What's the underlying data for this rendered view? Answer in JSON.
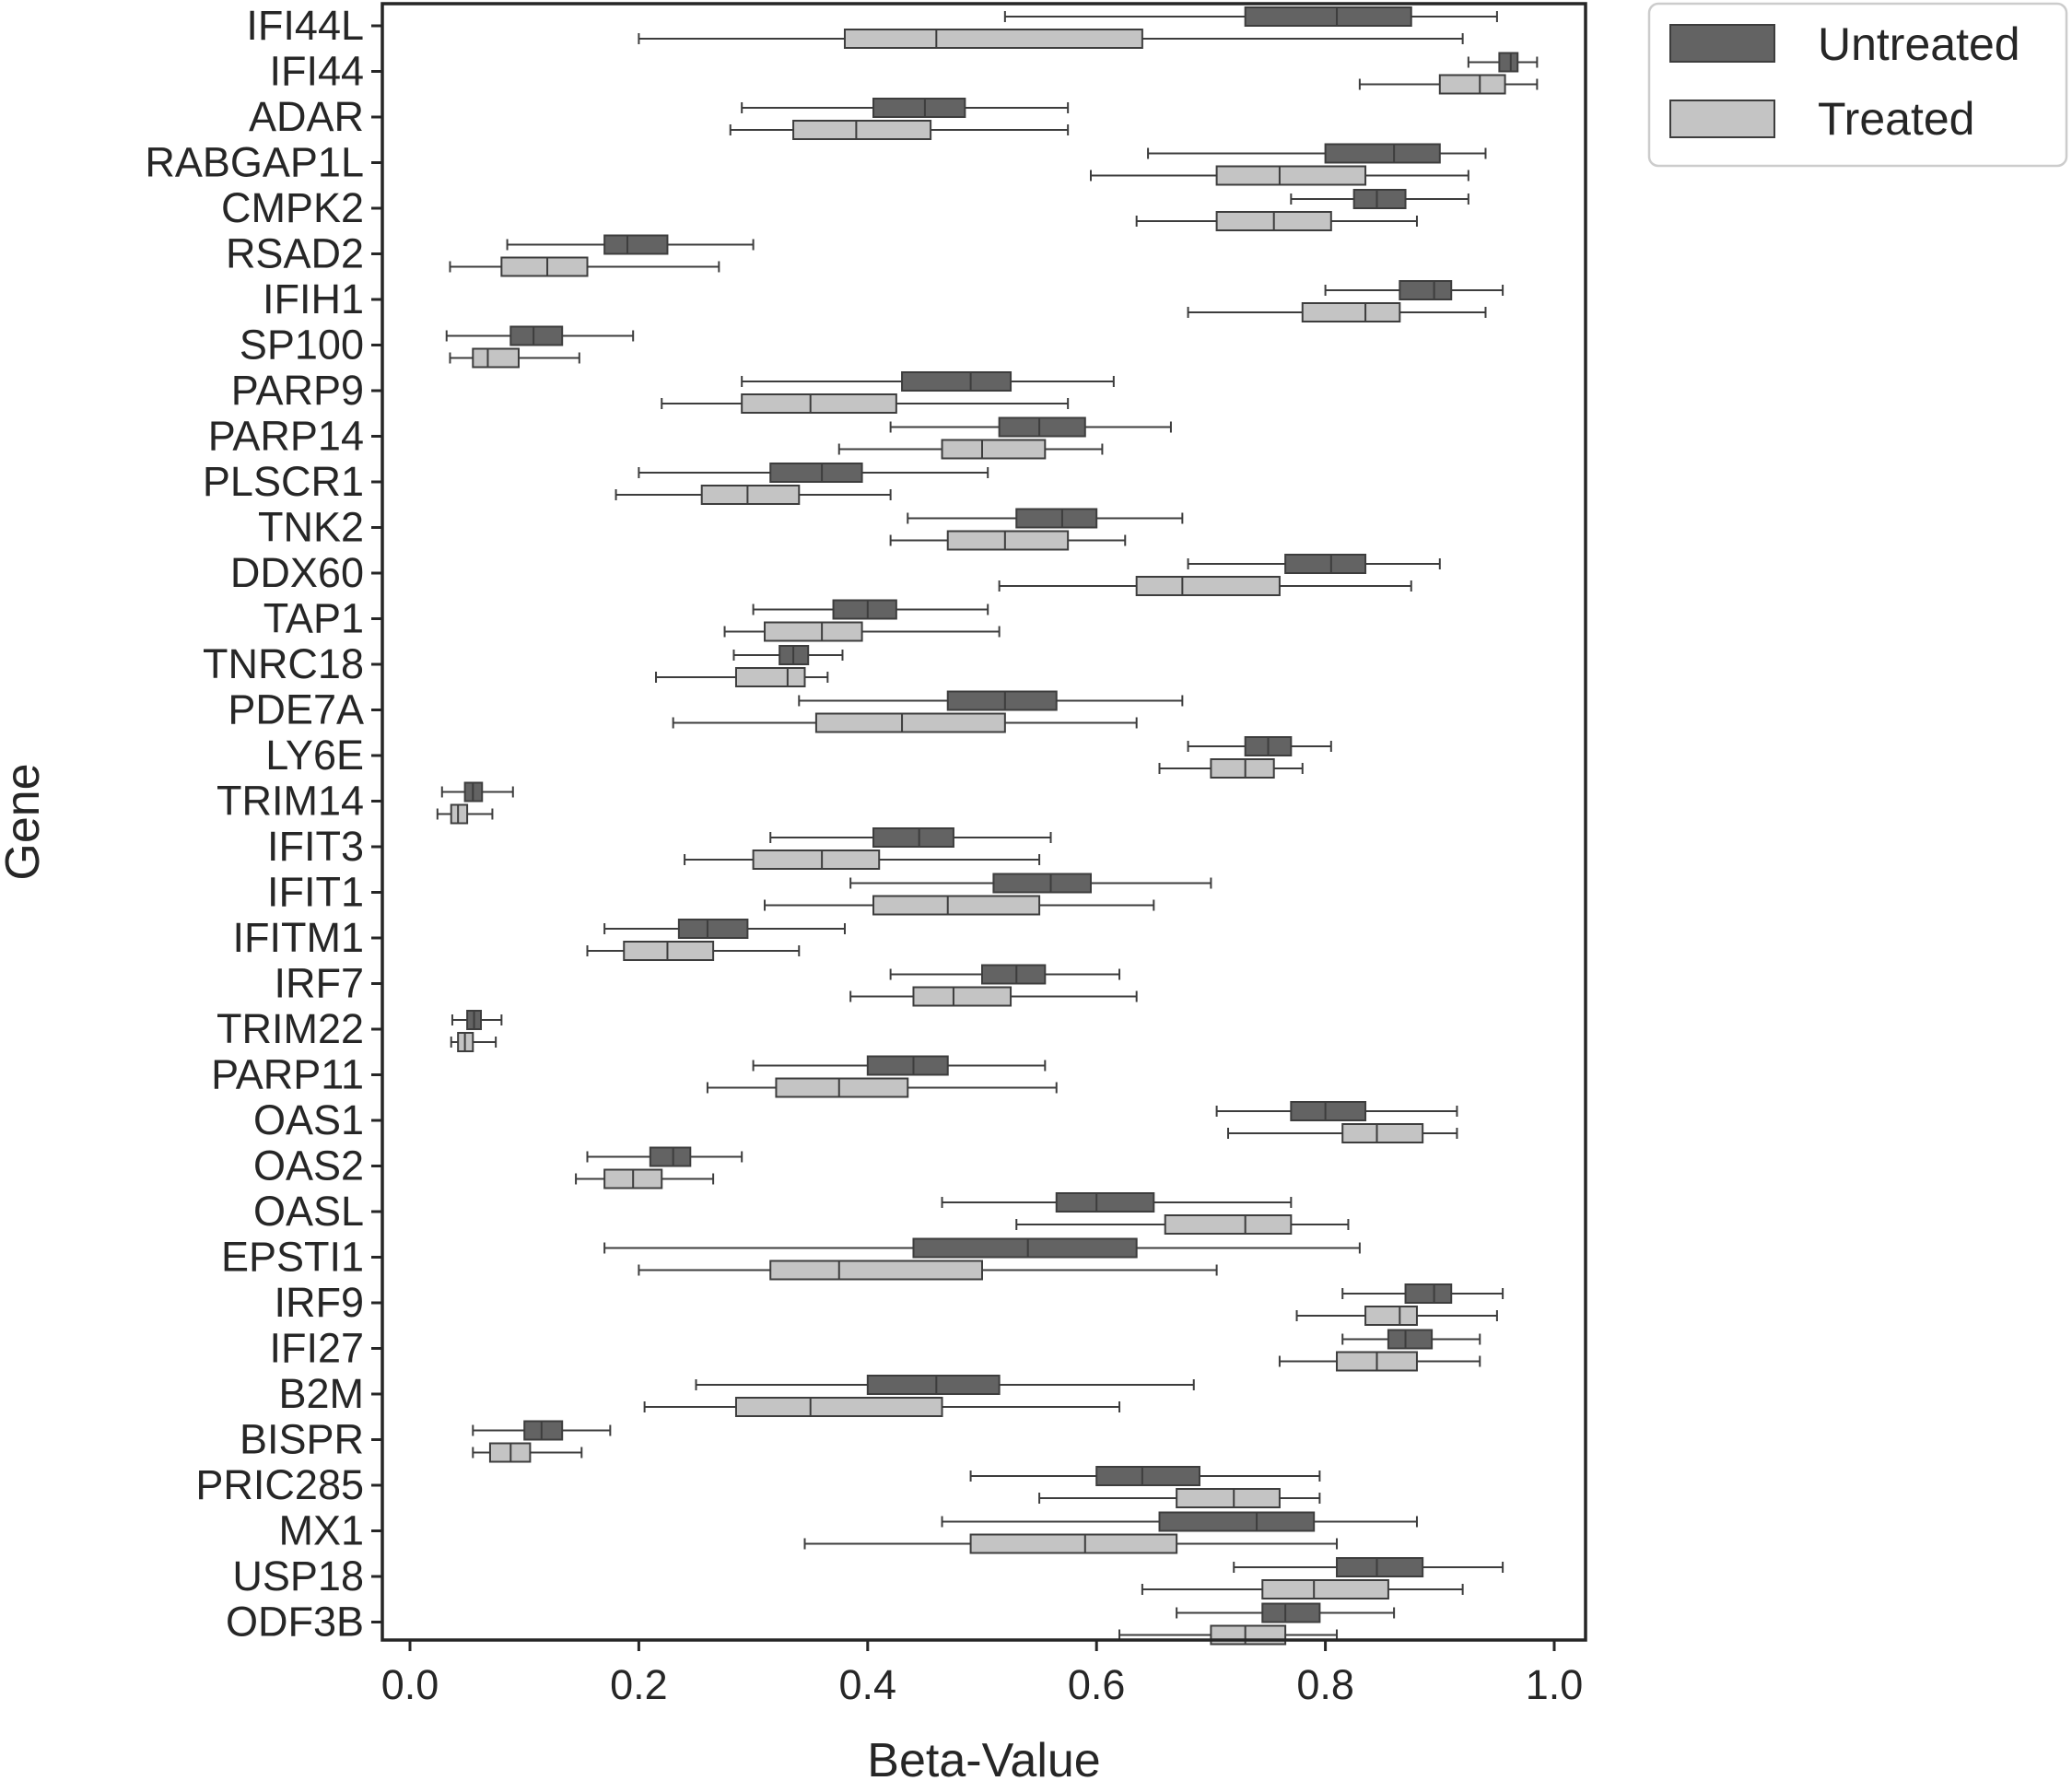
{
  "chart_data": {
    "type": "boxplot",
    "orientation": "horizontal",
    "xlabel": "Beta-Value",
    "ylabel": "Gene",
    "xlim": [
      -0.025,
      1.035
    ],
    "xticks": [
      0.0,
      0.2,
      0.4,
      0.6,
      0.8,
      1.0
    ],
    "xtick_labels": [
      "0.0",
      "0.2",
      "0.4",
      "0.6",
      "0.8",
      "1.0"
    ],
    "grid": false,
    "legend_position": "outside-top-right",
    "colors": {
      "Untreated": "#636363",
      "Treated": "#c4c4c4",
      "edge": "#3d3d3d"
    },
    "series": [
      {
        "name": "Untreated",
        "color": "#636363"
      },
      {
        "name": "Treated",
        "color": "#c4c4c4"
      }
    ],
    "categories": [
      "IFI44L",
      "IFI44",
      "ADAR",
      "RABGAP1L",
      "CMPK2",
      "RSAD2",
      "IFIH1",
      "SP100",
      "PARP9",
      "PARP14",
      "PLSCR1",
      "TNK2",
      "DDX60",
      "TAP1",
      "TNRC18",
      "PDE7A",
      "LY6E",
      "TRIM14",
      "IFIT3",
      "IFIT1",
      "IFITM1",
      "IRF7",
      "TRIM22",
      "PARP11",
      "OAS1",
      "OAS2",
      "OASL",
      "EPSTI1",
      "IRF9",
      "IFI27",
      "B2M",
      "BISPR",
      "PRIC285",
      "MX1",
      "USP18",
      "ODF3B"
    ],
    "boxes": [
      {
        "gene": "IFI44L",
        "untreated": [
          0.52,
          0.73,
          0.81,
          0.875,
          0.95
        ],
        "treated": [
          0.2,
          0.38,
          0.46,
          0.64,
          0.92
        ]
      },
      {
        "gene": "IFI44",
        "untreated": [
          0.925,
          0.952,
          0.962,
          0.968,
          0.985
        ],
        "treated": [
          0.83,
          0.9,
          0.935,
          0.957,
          0.985
        ]
      },
      {
        "gene": "ADAR",
        "untreated": [
          0.29,
          0.405,
          0.45,
          0.485,
          0.575
        ],
        "treated": [
          0.28,
          0.335,
          0.39,
          0.455,
          0.575
        ]
      },
      {
        "gene": "RABGAP1L",
        "untreated": [
          0.645,
          0.8,
          0.86,
          0.9,
          0.94
        ],
        "treated": [
          0.595,
          0.705,
          0.76,
          0.835,
          0.925
        ]
      },
      {
        "gene": "CMPK2",
        "untreated": [
          0.77,
          0.825,
          0.845,
          0.87,
          0.925
        ],
        "treated": [
          0.635,
          0.705,
          0.755,
          0.805,
          0.88
        ]
      },
      {
        "gene": "RSAD2",
        "untreated": [
          0.085,
          0.17,
          0.19,
          0.225,
          0.3
        ],
        "treated": [
          0.035,
          0.08,
          0.12,
          0.155,
          0.27
        ]
      },
      {
        "gene": "IFIH1",
        "untreated": [
          0.8,
          0.865,
          0.895,
          0.91,
          0.955
        ],
        "treated": [
          0.68,
          0.78,
          0.835,
          0.865,
          0.94
        ]
      },
      {
        "gene": "SP100",
        "untreated": [
          0.032,
          0.088,
          0.108,
          0.133,
          0.195
        ],
        "treated": [
          0.035,
          0.055,
          0.068,
          0.095,
          0.148
        ]
      },
      {
        "gene": "PARP9",
        "untreated": [
          0.29,
          0.43,
          0.49,
          0.525,
          0.615
        ],
        "treated": [
          0.22,
          0.29,
          0.35,
          0.425,
          0.575
        ]
      },
      {
        "gene": "PARP14",
        "untreated": [
          0.42,
          0.515,
          0.55,
          0.59,
          0.665
        ],
        "treated": [
          0.375,
          0.465,
          0.5,
          0.555,
          0.605
        ]
      },
      {
        "gene": "PLSCR1",
        "untreated": [
          0.2,
          0.315,
          0.36,
          0.395,
          0.505
        ],
        "treated": [
          0.18,
          0.255,
          0.295,
          0.34,
          0.42
        ]
      },
      {
        "gene": "TNK2",
        "untreated": [
          0.435,
          0.53,
          0.57,
          0.6,
          0.675
        ],
        "treated": [
          0.42,
          0.47,
          0.52,
          0.575,
          0.625
        ]
      },
      {
        "gene": "DDX60",
        "untreated": [
          0.68,
          0.765,
          0.805,
          0.835,
          0.9
        ],
        "treated": [
          0.515,
          0.635,
          0.675,
          0.76,
          0.875
        ]
      },
      {
        "gene": "TAP1",
        "untreated": [
          0.3,
          0.37,
          0.4,
          0.425,
          0.505
        ],
        "treated": [
          0.275,
          0.31,
          0.36,
          0.395,
          0.515
        ]
      },
      {
        "gene": "TNRC18",
        "untreated": [
          0.283,
          0.323,
          0.335,
          0.348,
          0.378
        ],
        "treated": [
          0.215,
          0.285,
          0.33,
          0.345,
          0.365
        ]
      },
      {
        "gene": "PDE7A",
        "untreated": [
          0.34,
          0.47,
          0.52,
          0.565,
          0.675
        ],
        "treated": [
          0.23,
          0.355,
          0.43,
          0.52,
          0.635
        ]
      },
      {
        "gene": "LY6E",
        "untreated": [
          0.68,
          0.73,
          0.75,
          0.77,
          0.805
        ],
        "treated": [
          0.655,
          0.7,
          0.73,
          0.755,
          0.78
        ]
      },
      {
        "gene": "TRIM14",
        "untreated": [
          0.028,
          0.048,
          0.055,
          0.063,
          0.09
        ],
        "treated": [
          0.024,
          0.036,
          0.042,
          0.05,
          0.072
        ]
      },
      {
        "gene": "IFIT3",
        "untreated": [
          0.315,
          0.405,
          0.445,
          0.475,
          0.56
        ],
        "treated": [
          0.24,
          0.3,
          0.36,
          0.41,
          0.55
        ]
      },
      {
        "gene": "IFIT1",
        "untreated": [
          0.385,
          0.51,
          0.56,
          0.595,
          0.7
        ],
        "treated": [
          0.31,
          0.405,
          0.47,
          0.55,
          0.65
        ]
      },
      {
        "gene": "IFITM1",
        "untreated": [
          0.17,
          0.235,
          0.26,
          0.295,
          0.38
        ],
        "treated": [
          0.155,
          0.187,
          0.225,
          0.265,
          0.34
        ]
      },
      {
        "gene": "IRF7",
        "untreated": [
          0.42,
          0.5,
          0.53,
          0.555,
          0.62
        ],
        "treated": [
          0.385,
          0.44,
          0.475,
          0.525,
          0.635
        ]
      },
      {
        "gene": "TRIM22",
        "untreated": [
          0.037,
          0.05,
          0.056,
          0.062,
          0.08
        ],
        "treated": [
          0.036,
          0.042,
          0.048,
          0.055,
          0.075
        ]
      },
      {
        "gene": "PARP11",
        "untreated": [
          0.3,
          0.4,
          0.44,
          0.47,
          0.555
        ],
        "treated": [
          0.26,
          0.32,
          0.375,
          0.435,
          0.565
        ]
      },
      {
        "gene": "OAS1",
        "untreated": [
          0.705,
          0.77,
          0.8,
          0.835,
          0.915
        ],
        "treated": [
          0.715,
          0.815,
          0.845,
          0.885,
          0.915
        ]
      },
      {
        "gene": "OAS2",
        "untreated": [
          0.155,
          0.21,
          0.23,
          0.245,
          0.29
        ],
        "treated": [
          0.145,
          0.17,
          0.195,
          0.22,
          0.265
        ]
      },
      {
        "gene": "OASL",
        "untreated": [
          0.465,
          0.565,
          0.6,
          0.65,
          0.77
        ],
        "treated": [
          0.53,
          0.66,
          0.73,
          0.77,
          0.82
        ]
      },
      {
        "gene": "EPSTI1",
        "untreated": [
          0.17,
          0.44,
          0.54,
          0.635,
          0.83
        ],
        "treated": [
          0.2,
          0.315,
          0.375,
          0.5,
          0.705
        ]
      },
      {
        "gene": "IRF9",
        "untreated": [
          0.815,
          0.87,
          0.895,
          0.91,
          0.955
        ],
        "treated": [
          0.775,
          0.835,
          0.865,
          0.88,
          0.95
        ]
      },
      {
        "gene": "IFI27",
        "untreated": [
          0.815,
          0.855,
          0.87,
          0.893,
          0.935
        ],
        "treated": [
          0.76,
          0.81,
          0.845,
          0.88,
          0.935
        ]
      },
      {
        "gene": "B2M",
        "untreated": [
          0.25,
          0.4,
          0.46,
          0.515,
          0.685
        ],
        "treated": [
          0.205,
          0.285,
          0.35,
          0.465,
          0.62
        ]
      },
      {
        "gene": "BISPR",
        "untreated": [
          0.055,
          0.1,
          0.115,
          0.133,
          0.175
        ],
        "treated": [
          0.055,
          0.07,
          0.088,
          0.105,
          0.15
        ]
      },
      {
        "gene": "PRIC285",
        "untreated": [
          0.49,
          0.6,
          0.64,
          0.69,
          0.795
        ],
        "treated": [
          0.55,
          0.67,
          0.72,
          0.76,
          0.795
        ]
      },
      {
        "gene": "MX1",
        "untreated": [
          0.465,
          0.655,
          0.74,
          0.79,
          0.88
        ],
        "treated": [
          0.345,
          0.49,
          0.59,
          0.67,
          0.81
        ]
      },
      {
        "gene": "USP18",
        "untreated": [
          0.72,
          0.81,
          0.845,
          0.885,
          0.955
        ],
        "treated": [
          0.64,
          0.745,
          0.79,
          0.855,
          0.92
        ]
      },
      {
        "gene": "ODF3B",
        "untreated": [
          0.67,
          0.745,
          0.765,
          0.795,
          0.86
        ],
        "treated": [
          0.62,
          0.7,
          0.73,
          0.765,
          0.81
        ]
      }
    ]
  }
}
